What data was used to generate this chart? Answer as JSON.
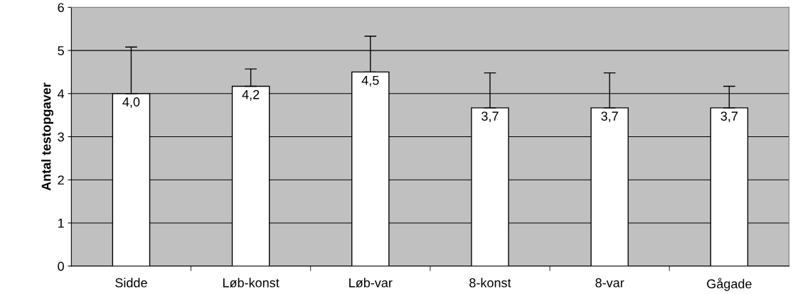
{
  "chart_data": {
    "type": "bar",
    "ylabel": "Antal testopgaver",
    "categories": [
      "Sidde",
      "Løb-konst",
      "Løb-var",
      "8-konst",
      "8-var",
      "Gågade"
    ],
    "values": [
      4.0,
      4.17,
      4.5,
      3.67,
      3.67,
      3.67
    ],
    "value_labels": [
      "4,0",
      "4,2",
      "4,5",
      "3,7",
      "3,7",
      "3,7"
    ],
    "errors": [
      [
        4.0,
        5.08
      ],
      [
        4.17,
        4.57
      ],
      [
        4.5,
        5.33
      ],
      [
        3.67,
        4.48
      ],
      [
        3.67,
        4.48
      ],
      [
        3.67,
        4.17
      ]
    ],
    "color": "#ffffff",
    "ylim": [
      0,
      6
    ],
    "yticks": [
      0,
      1,
      2,
      3,
      4,
      5,
      6
    ],
    "grid": "y"
  }
}
